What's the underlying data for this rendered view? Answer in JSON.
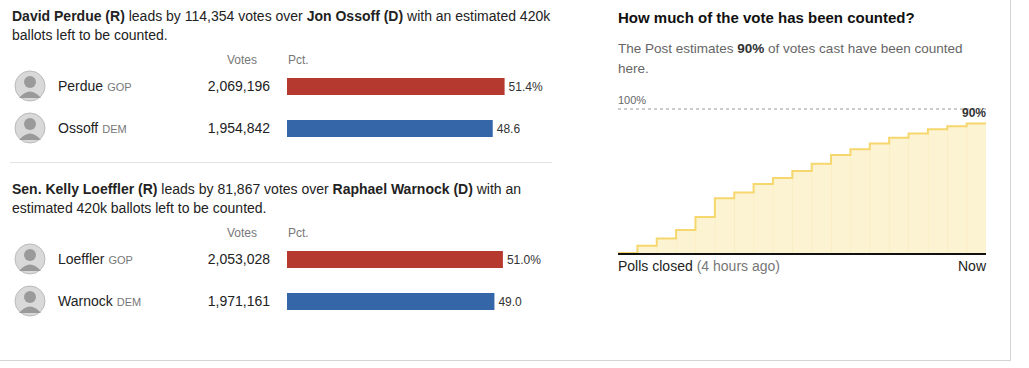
{
  "chart_data": [
    {
      "type": "bar",
      "orientation": "horizontal",
      "title": [
        "David Perdue (R)",
        " leads by 114,354 votes over ",
        "Jon Ossoff (D)",
        " with an estimated 420k ballots left to be counted."
      ],
      "categories": [
        "Perdue",
        "Ossoff"
      ],
      "parties": [
        "GOP",
        "DEM"
      ],
      "votes_header": "Votes",
      "votes": [
        2069196,
        1954842
      ],
      "values_header": "Pct.",
      "values": [
        51.4,
        48.6
      ],
      "value_labels": [
        "51.4%",
        "48.6"
      ],
      "colors": [
        "#b5392f",
        "#3566a8"
      ],
      "xlim": [
        0,
        60
      ],
      "data_labels": true,
      "tick_labels": false
    },
    {
      "type": "bar",
      "orientation": "horizontal",
      "title": [
        "Sen. Kelly Loeffler (R)",
        " leads by 81,867 votes over ",
        "Raphael Warnock (D)",
        " with an estimated 420k ballots left to be counted."
      ],
      "categories": [
        "Loeffler",
        "Warnock"
      ],
      "parties": [
        "GOP",
        "DEM"
      ],
      "votes_header": "Votes",
      "votes": [
        2053028,
        1971161
      ],
      "values_header": "Pct.",
      "values": [
        51.0,
        49.0
      ],
      "value_labels": [
        "51.0%",
        "49.0"
      ],
      "colors": [
        "#b5392f",
        "#3566a8"
      ],
      "xlim": [
        0,
        60
      ],
      "data_labels": true,
      "tick_labels": false
    },
    {
      "type": "area",
      "line_style": "step",
      "title": "How much of the vote has been counted?",
      "subtitle": [
        "The Post estimates ",
        "90%",
        " of votes cast have been counted here."
      ],
      "categories": [
        "Polls closed",
        null,
        null,
        null,
        null,
        null,
        null,
        null,
        null,
        null,
        null,
        null,
        null,
        null,
        null,
        null,
        null,
        null,
        "Now"
      ],
      "x_note": "(4 hours ago)",
      "values": [
        0,
        5,
        10,
        16,
        25,
        38,
        42,
        48,
        52,
        57,
        62,
        68,
        72,
        76,
        80,
        83,
        86,
        88,
        90
      ],
      "value_labels": [
        null,
        null,
        null,
        null,
        null,
        null,
        null,
        null,
        null,
        null,
        null,
        null,
        null,
        null,
        null,
        null,
        null,
        null,
        "90%"
      ],
      "ylim": [
        0,
        100
      ],
      "yticks": [
        {
          "value": 100,
          "label": "100%"
        }
      ],
      "color": "#f5d76e",
      "grid": true
    }
  ]
}
